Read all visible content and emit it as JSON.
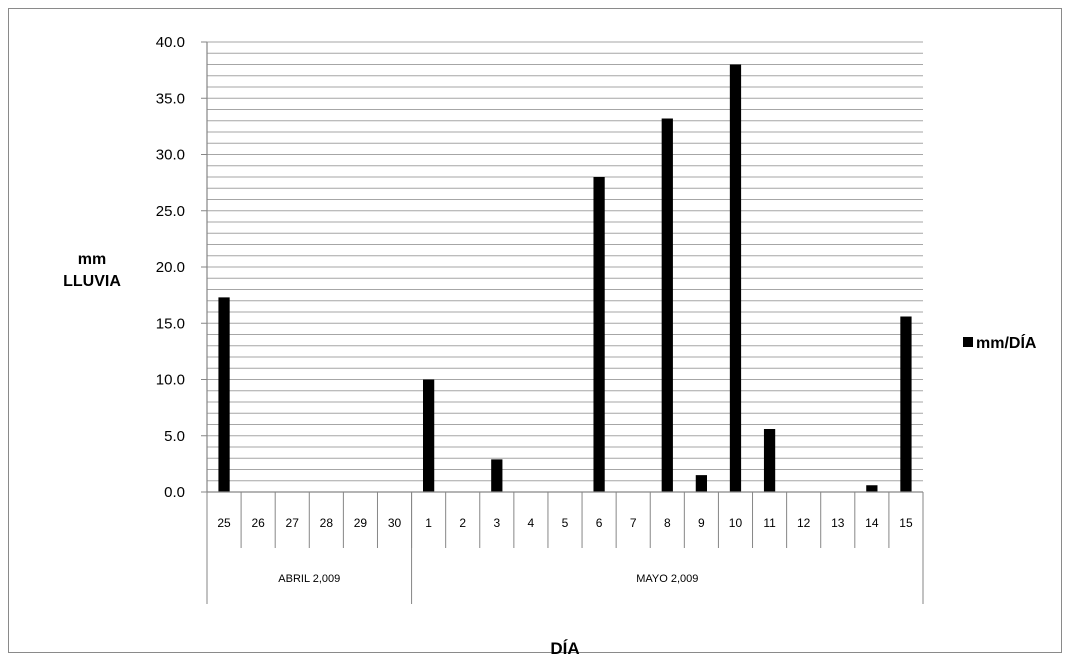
{
  "chart_data": {
    "type": "bar",
    "categories": [
      "25",
      "26",
      "27",
      "28",
      "29",
      "30",
      "1",
      "2",
      "3",
      "4",
      "5",
      "6",
      "7",
      "8",
      "9",
      "10",
      "11",
      "12",
      "13",
      "14",
      "15"
    ],
    "groups": [
      {
        "label": "ABRIL 2,009",
        "start": 0,
        "end": 5
      },
      {
        "label": "MAYO 2,009",
        "start": 6,
        "end": 20
      }
    ],
    "series": [
      {
        "name": "mm/DÍA",
        "values": [
          17.3,
          0,
          0,
          0,
          0,
          0,
          10.0,
          0,
          2.9,
          0,
          0,
          28.0,
          0,
          33.2,
          1.5,
          38.0,
          5.6,
          0,
          0,
          0.6,
          15.6
        ]
      }
    ],
    "title": "",
    "xlabel": "DÍA",
    "ylabel_lines": [
      "mm",
      "LLUVIA"
    ],
    "ylim": [
      0,
      40
    ],
    "yticks": [
      "0.0",
      "5.0",
      "10.0",
      "15.0",
      "20.0",
      "25.0",
      "30.0",
      "35.0",
      "40.0"
    ],
    "minor_grid_step": 1,
    "grid": true,
    "legend_position": "right",
    "colors": {
      "bar": "#000000",
      "grid": "#a6a6a6",
      "axis": "#868686"
    }
  }
}
